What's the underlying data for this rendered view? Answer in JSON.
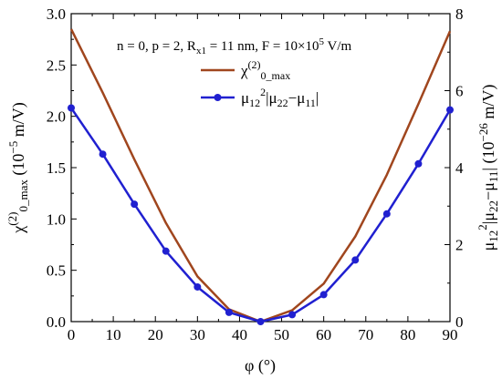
{
  "chart_data": {
    "type": "line",
    "annotation": "n = 0, p = 2, Rₓ₁ = 11 nm, F = 10×10⁵ V/m",
    "annotation_parts": {
      "a": "n = 0, p = 2, R",
      "b": "x1",
      "c": " = 11 nm, F = 10×10",
      "d": "5",
      "e": " V/m"
    },
    "xlabel": "φ (°)",
    "ylabel_left": "χ(2)0_max (10⁻⁵ m/V)",
    "ylabel_left_parts": {
      "chi": "χ",
      "sup": "(2)",
      "sub": "0_max",
      "rest": " (10",
      "exp": "−5",
      "unit": " m/V)"
    },
    "ylabel_right": "μ12²|μ22−μ11| (10⁻²⁶ m/V)",
    "ylabel_right_parts": {
      "mu": "μ",
      "sub1": "12",
      "sup1": "2",
      "mid": "|μ",
      "sub2": "22",
      "minus": "−μ",
      "sub3": "11",
      "rest": "| (10",
      "exp": "−26",
      "unit": " m/V)"
    },
    "xlim": [
      0,
      90
    ],
    "ylim_left": [
      0,
      3.0
    ],
    "ylim_right": [
      0,
      8
    ],
    "xticks": [
      0,
      10,
      20,
      30,
      40,
      50,
      60,
      70,
      80,
      90
    ],
    "yticks_left": [
      "0.0",
      "0.5",
      "1.0",
      "1.5",
      "2.0",
      "2.5",
      "3.0"
    ],
    "yticks_right": [
      "0",
      "2",
      "4",
      "6",
      "8"
    ],
    "series": [
      {
        "name": "χ(2)0_max",
        "legend_parts": {
          "chi": "χ",
          "sup": "(2)",
          "sub": "0_max"
        },
        "axis": "left",
        "color": "#a0461e",
        "markers": false,
        "x": [
          0,
          7.5,
          15,
          22.5,
          30,
          37.5,
          45,
          52.5,
          60,
          67.5,
          75,
          82.5,
          90
        ],
        "y": [
          2.85,
          2.23,
          1.58,
          0.96,
          0.44,
          0.12,
          0.0,
          0.11,
          0.37,
          0.83,
          1.43,
          2.12,
          2.83
        ]
      },
      {
        "name": "μ12²|μ22−μ11|",
        "legend_parts": {
          "mu": "μ",
          "sub1": "12",
          "sup1": "2",
          "mid": "|μ",
          "sub2": "22",
          "minus": "−μ",
          "sub3": "11",
          "end": "|"
        },
        "axis": "right",
        "color": "#2020d0",
        "markers": true,
        "x": [
          0,
          7.5,
          15,
          22.5,
          30,
          37.5,
          45,
          52.5,
          60,
          67.5,
          75,
          82.5,
          90
        ],
        "y": [
          5.55,
          4.35,
          3.05,
          1.83,
          0.9,
          0.24,
          0.0,
          0.18,
          0.7,
          1.6,
          2.8,
          4.1,
          5.5
        ]
      }
    ]
  }
}
